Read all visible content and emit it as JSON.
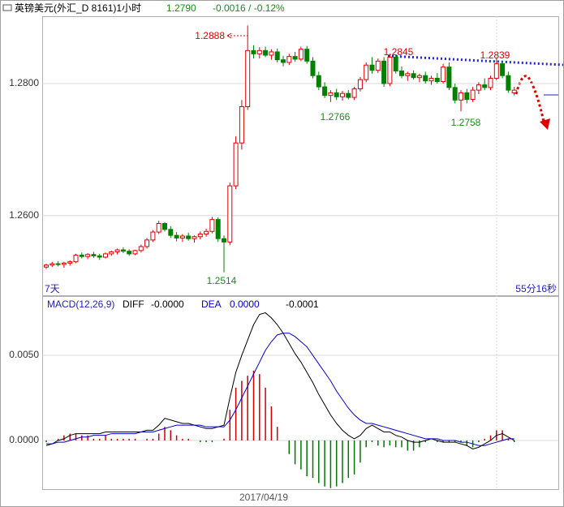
{
  "chart_data": [
    {
      "type": "candlestick",
      "title": "英镑美元(外汇_D 8161)1小时",
      "last": "1.2790",
      "change": "-0.0016 / -0.12%",
      "period_label": "7天",
      "timer": "55分16秒",
      "date_label": "2017/04/19",
      "up_color": "#e00000",
      "down_color": "#008000",
      "ylim": [
        1.2478,
        1.2902
      ],
      "yticks": [
        {
          "value": 1.28,
          "label": "1.2800"
        },
        {
          "value": 1.26,
          "label": "1.2600"
        }
      ],
      "grid": true,
      "annotations": [
        {
          "label": "1.2888",
          "color": "#e00000"
        },
        {
          "label": "1.2845",
          "color": "#e00000"
        },
        {
          "label": "1.2839",
          "color": "#e00000"
        },
        {
          "label": "1.2766",
          "color": "#1a8a1a"
        },
        {
          "label": "1.2758",
          "color": "#1a8a1a"
        },
        {
          "label": "1.2514",
          "color": "#1a8a1a"
        }
      ],
      "candles": [
        [
          1.2522,
          1.2527,
          1.2519,
          1.2525
        ],
        [
          1.2525,
          1.253,
          1.2522,
          1.2527
        ],
        [
          1.2527,
          1.2531,
          1.2523,
          1.2526
        ],
        [
          1.2526,
          1.253,
          1.2521,
          1.2528
        ],
        [
          1.2528,
          1.2532,
          1.2524,
          1.253
        ],
        [
          1.253,
          1.2542,
          1.2528,
          1.254
        ],
        [
          1.254,
          1.2544,
          1.2535,
          1.2538
        ],
        [
          1.2538,
          1.2543,
          1.2534,
          1.2541
        ],
        [
          1.2541,
          1.2545,
          1.2536,
          1.2539
        ],
        [
          1.2539,
          1.2542,
          1.2533,
          1.2537
        ],
        [
          1.2537,
          1.2544,
          1.2535,
          1.2542
        ],
        [
          1.2542,
          1.2547,
          1.2539,
          1.2545
        ],
        [
          1.2545,
          1.255,
          1.2541,
          1.2548
        ],
        [
          1.2548,
          1.2552,
          1.2543,
          1.2546
        ],
        [
          1.2546,
          1.2549,
          1.2539,
          1.2542
        ],
        [
          1.2542,
          1.2548,
          1.254,
          1.2547
        ],
        [
          1.2547,
          1.2556,
          1.2544,
          1.2553
        ],
        [
          1.2553,
          1.2566,
          1.255,
          1.2563
        ],
        [
          1.2563,
          1.2578,
          1.256,
          1.2575
        ],
        [
          1.2575,
          1.2592,
          1.2572,
          1.2588
        ],
        [
          1.2588,
          1.259,
          1.2576,
          1.2579
        ],
        [
          1.2579,
          1.2584,
          1.2566,
          1.257
        ],
        [
          1.257,
          1.2575,
          1.2561,
          1.2566
        ],
        [
          1.2566,
          1.2572,
          1.256,
          1.2569
        ],
        [
          1.2569,
          1.2574,
          1.2562,
          1.2565
        ],
        [
          1.2565,
          1.257,
          1.2559,
          1.2568
        ],
        [
          1.2568,
          1.2576,
          1.2564,
          1.2572
        ],
        [
          1.2572,
          1.258,
          1.2568,
          1.2576
        ],
        [
          1.2576,
          1.2598,
          1.2573,
          1.2594
        ],
        [
          1.2594,
          1.2597,
          1.256,
          1.2565
        ],
        [
          1.2565,
          1.257,
          1.2514,
          1.256
        ],
        [
          1.256,
          1.265,
          1.2555,
          1.2645
        ],
        [
          1.2645,
          1.272,
          1.264,
          1.271
        ],
        [
          1.271,
          1.2775,
          1.27,
          1.2765
        ],
        [
          1.2765,
          1.2888,
          1.276,
          1.285
        ],
        [
          1.285,
          1.2858,
          1.2838,
          1.2845
        ],
        [
          1.2845,
          1.2855,
          1.2838,
          1.285
        ],
        [
          1.285,
          1.2856,
          1.284,
          1.2843
        ],
        [
          1.2843,
          1.2852,
          1.2836,
          1.2848
        ],
        [
          1.2848,
          1.2853,
          1.2832,
          1.2836
        ],
        [
          1.2836,
          1.2842,
          1.2826,
          1.2832
        ],
        [
          1.2832,
          1.2845,
          1.2828,
          1.2841
        ],
        [
          1.2841,
          1.2848,
          1.2833,
          1.2837
        ],
        [
          1.2837,
          1.2856,
          1.2834,
          1.2852
        ],
        [
          1.2852,
          1.2857,
          1.283,
          1.2834
        ],
        [
          1.2834,
          1.284,
          1.2808,
          1.2812
        ],
        [
          1.2812,
          1.2818,
          1.279,
          1.2795
        ],
        [
          1.2795,
          1.2802,
          1.2778,
          1.2782
        ],
        [
          1.2782,
          1.279,
          1.2772,
          1.2786
        ],
        [
          1.2786,
          1.2792,
          1.2775,
          1.278
        ],
        [
          1.278,
          1.2789,
          1.2774,
          1.2785
        ],
        [
          1.2785,
          1.279,
          1.2776,
          1.2779
        ],
        [
          1.2779,
          1.2795,
          1.2775,
          1.2792
        ],
        [
          1.2792,
          1.281,
          1.2788,
          1.2806
        ],
        [
          1.2806,
          1.2832,
          1.2802,
          1.2828
        ],
        [
          1.2828,
          1.284,
          1.2815,
          1.282
        ],
        [
          1.282,
          1.2838,
          1.2816,
          1.2834
        ],
        [
          1.2834,
          1.284,
          1.2795,
          1.28
        ],
        [
          1.28,
          1.2845,
          1.2796,
          1.284
        ],
        [
          1.284,
          1.2843,
          1.2815,
          1.2819
        ],
        [
          1.2819,
          1.2826,
          1.2808,
          1.2812
        ],
        [
          1.2812,
          1.2818,
          1.2804,
          1.2815
        ],
        [
          1.2815,
          1.282,
          1.2806,
          1.2809
        ],
        [
          1.2809,
          1.2815,
          1.2802,
          1.2812
        ],
        [
          1.2812,
          1.2818,
          1.28,
          1.2804
        ],
        [
          1.2804,
          1.2812,
          1.2798,
          1.2808
        ],
        [
          1.2808,
          1.2816,
          1.28,
          1.2803
        ],
        [
          1.2803,
          1.283,
          1.28,
          1.2825
        ],
        [
          1.2825,
          1.2832,
          1.279,
          1.2794
        ],
        [
          1.2794,
          1.28,
          1.277,
          1.2775
        ],
        [
          1.2775,
          1.279,
          1.2758,
          1.2786
        ],
        [
          1.2786,
          1.2792,
          1.277,
          1.2776
        ],
        [
          1.2776,
          1.2795,
          1.2772,
          1.279
        ],
        [
          1.279,
          1.2802,
          1.2784,
          1.2798
        ],
        [
          1.2798,
          1.2808,
          1.279,
          1.2794
        ],
        [
          1.2794,
          1.2812,
          1.279,
          1.2808
        ],
        [
          1.2808,
          1.2839,
          1.2805,
          1.283
        ],
        [
          1.283,
          1.2834,
          1.2808,
          1.2812
        ],
        [
          1.2812,
          1.2818,
          1.2786,
          1.279
        ],
        [
          1.2786,
          1.2795,
          1.2782,
          1.279
        ]
      ]
    },
    {
      "type": "macd",
      "title": "MACD(12,26,9)",
      "diff_value": "-0.0000",
      "dea_value": "0.0000",
      "macd_value": "-0.0001",
      "ylim": [
        -0.00286,
        0.00848
      ],
      "yticks": [
        {
          "value": 0.005,
          "label": "0.0050"
        },
        {
          "value": 0,
          "label": "0.0000"
        }
      ],
      "grid": true,
      "series": [
        {
          "name": "DIFF",
          "color": "#000000",
          "values": [
            -0.0003,
            -0.0002,
            0,
            0.0001,
            0.0003,
            0.0004,
            0.0004,
            0.0004,
            0.0004,
            0.0004,
            0.0005,
            0.0005,
            0.0005,
            0.0005,
            0.0005,
            0.0005,
            0.0005,
            0.0006,
            0.0006,
            0.0009,
            0.0013,
            0.0012,
            0.0011,
            0.001,
            0.001,
            0.0009,
            0.0008,
            0.0007,
            0.0007,
            0.0008,
            0.0009,
            0.0025,
            0.004,
            0.005,
            0.0059,
            0.0068,
            0.0074,
            0.0075,
            0.0072,
            0.0068,
            0.0063,
            0.0057,
            0.0051,
            0.0046,
            0.004,
            0.0034,
            0.0027,
            0.0021,
            0.0015,
            0.001,
            0.0006,
            0.0003,
            0.0001,
            0.0003,
            0.0007,
            0.0009,
            0.0007,
            0.0005,
            0.0005,
            0.0003,
            0.0002,
            0,
            -0.0001,
            -0.0001,
            0,
            0.0001,
            0,
            -0.0001,
            -0.0001,
            -0.0001,
            -0.0002,
            -0.0003,
            -0.0005,
            -0.0004,
            -0.0002,
            0,
            0.0003,
            0.0004,
            0.0002,
            0
          ]
        },
        {
          "name": "DEA",
          "color": "#0000cc",
          "values": [
            -0.0002,
            -0.0002,
            -0.0001,
            -0.0001,
            0,
            0.0001,
            0.0002,
            0.0002,
            0.0003,
            0.0003,
            0.0003,
            0.0004,
            0.0004,
            0.0004,
            0.0004,
            0.0004,
            0.0005,
            0.0005,
            0.0005,
            0.0006,
            0.0007,
            0.0008,
            0.0009,
            0.0009,
            0.0009,
            0.0009,
            0.0009,
            0.0008,
            0.0008,
            0.0008,
            0.0008,
            0.0012,
            0.0018,
            0.0025,
            0.0032,
            0.0039,
            0.0046,
            0.0053,
            0.0058,
            0.0062,
            0.0063,
            0.0063,
            0.0061,
            0.0058,
            0.0055,
            0.005,
            0.0045,
            0.004,
            0.0035,
            0.0029,
            0.0024,
            0.0019,
            0.0015,
            0.0012,
            0.001,
            0.001,
            0.0009,
            0.0008,
            0.0007,
            0.0006,
            0.0005,
            0.0004,
            0.0003,
            0.0002,
            0.0001,
            0.0001,
            0.0001,
            0,
            0,
            0,
            -0.0001,
            -0.0001,
            -0.0002,
            -0.0003,
            -0.0003,
            -0.0002,
            -0.0001,
            0,
            0.0001,
            0.0001
          ]
        },
        {
          "up_color": "#cc0000",
          "down_color": "#007700",
          "values": [
            -0.0001,
            0,
            0.0001,
            0.0003,
            0.0004,
            0.0004,
            0.0003,
            0.0003,
            0.0001,
            0.0001,
            0.0003,
            0.0001,
            0.0001,
            0.0001,
            0.0001,
            0.0001,
            0,
            0.0001,
            0.0001,
            0.0004,
            0.0008,
            0.0006,
            0.0003,
            0.0001,
            0.0001,
            0,
            -0.0001,
            -0.0001,
            -0.0001,
            0,
            0.0001,
            0.0018,
            0.0031,
            0.0035,
            0.0038,
            0.0041,
            0.0039,
            0.0031,
            0.002,
            0.0008,
            0,
            -0.0008,
            -0.0014,
            -0.0017,
            -0.0021,
            -0.0022,
            -0.0025,
            -0.0027,
            -0.0028,
            -0.0027,
            -0.0025,
            -0.0022,
            -0.002,
            -0.0013,
            -0.0004,
            -0.0001,
            -0.0003,
            -0.0004,
            -0.0003,
            -0.0004,
            -0.0004,
            -0.0006,
            -0.0006,
            -0.0004,
            -0.0001,
            0,
            -0.0001,
            -0.0001,
            -0.0001,
            -0.0001,
            -0.0001,
            -0.0003,
            -0.0004,
            -0.0001,
            0.0001,
            0.0003,
            0.0006,
            0.0006,
            0.0001,
            -0.0001
          ]
        }
      ]
    }
  ]
}
